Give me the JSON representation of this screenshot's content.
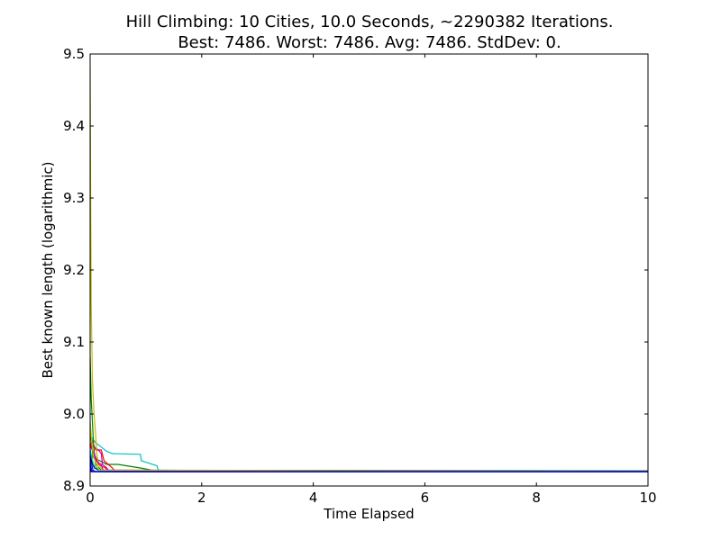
{
  "chart_data": {
    "type": "line",
    "title_line1": "Hill Climbing: 10 Cities, 10.0 Seconds, ~2290382 Iterations.",
    "title_line2": "Best: 7486. Worst: 7486. Avg: 7486. StdDev: 0.",
    "xlabel": "Time Elapsed",
    "ylabel": "Best known length (logarithmic)",
    "xlim": [
      0,
      10
    ],
    "ylim": [
      8.9,
      9.5
    ],
    "x_ticks": [
      0,
      2,
      4,
      6,
      8,
      10
    ],
    "x_tick_labels": [
      "0",
      "2",
      "4",
      "6",
      "8",
      "10"
    ],
    "y_ticks": [
      8.9,
      9.0,
      9.1,
      9.2,
      9.3,
      9.4,
      9.5
    ],
    "y_tick_labels": [
      "8.9",
      "9.0",
      "9.1",
      "9.2",
      "9.3",
      "9.4",
      "9.5"
    ],
    "grid": false,
    "legend": "none",
    "series": [
      {
        "color": "#0000ff",
        "points": [
          [
            0,
            8.95
          ],
          [
            0.03,
            8.93
          ],
          [
            0.05,
            8.922
          ],
          [
            0.1,
            8.92
          ],
          [
            10,
            8.92
          ]
        ]
      },
      {
        "color": "#008000",
        "points": [
          [
            0,
            8.98
          ],
          [
            0.05,
            8.94
          ],
          [
            0.3,
            8.93
          ],
          [
            0.5,
            8.93
          ],
          [
            0.9,
            8.925
          ],
          [
            1.1,
            8.922
          ],
          [
            1.5,
            8.92
          ],
          [
            10,
            8.92
          ]
        ]
      },
      {
        "color": "#ff0000",
        "points": [
          [
            0,
            8.97
          ],
          [
            0.1,
            8.95
          ],
          [
            0.2,
            8.95
          ],
          [
            0.25,
            8.935
          ],
          [
            0.4,
            8.925
          ],
          [
            0.45,
            8.92
          ],
          [
            10,
            8.92
          ]
        ]
      },
      {
        "color": "#00bfbf",
        "points": [
          [
            0,
            8.97
          ],
          [
            0.1,
            8.96
          ],
          [
            0.3,
            8.948
          ],
          [
            0.4,
            8.945
          ],
          [
            0.9,
            8.944
          ],
          [
            0.92,
            8.935
          ],
          [
            1.0,
            8.933
          ],
          [
            1.2,
            8.928
          ],
          [
            1.22,
            8.922
          ],
          [
            2.5,
            8.921
          ],
          [
            2.6,
            8.92
          ],
          [
            10,
            8.92
          ]
        ]
      },
      {
        "color": "#bf00bf",
        "points": [
          [
            0,
            8.96
          ],
          [
            0.05,
            8.955
          ],
          [
            0.15,
            8.95
          ],
          [
            0.2,
            8.945
          ],
          [
            0.22,
            8.93
          ],
          [
            0.3,
            8.925
          ],
          [
            0.35,
            8.92
          ],
          [
            10,
            8.92
          ]
        ]
      },
      {
        "color": "#bfbf00",
        "points": [
          [
            0,
            9.48
          ],
          [
            0.01,
            9.3
          ],
          [
            0.02,
            9.15
          ],
          [
            0.04,
            9.05
          ],
          [
            0.07,
            9.0
          ],
          [
            0.1,
            8.97
          ],
          [
            0.12,
            8.945
          ],
          [
            0.15,
            8.93
          ],
          [
            0.2,
            8.925
          ],
          [
            0.25,
            8.922
          ],
          [
            10,
            8.921
          ]
        ]
      },
      {
        "color": "#000000",
        "points": [
          [
            0,
            8.94
          ],
          [
            0.02,
            8.935
          ],
          [
            0.05,
            8.93
          ],
          [
            0.08,
            8.925
          ],
          [
            0.15,
            8.922
          ],
          [
            0.2,
            8.92
          ],
          [
            10,
            8.92
          ]
        ]
      },
      {
        "color": "#0000ff",
        "points": [
          [
            0,
            8.93
          ],
          [
            0.02,
            8.925
          ],
          [
            0.03,
            8.92
          ],
          [
            10,
            8.92
          ]
        ]
      },
      {
        "color": "#008000",
        "points": [
          [
            0,
            9.08
          ],
          [
            0.02,
            9.02
          ],
          [
            0.04,
            8.99
          ],
          [
            0.06,
            8.96
          ],
          [
            0.08,
            8.94
          ],
          [
            0.1,
            8.93
          ],
          [
            0.2,
            8.922
          ],
          [
            10,
            8.921
          ]
        ]
      },
      {
        "color": "#ff0000",
        "points": [
          [
            0,
            8.96
          ],
          [
            0.04,
            8.95
          ],
          [
            0.1,
            8.94
          ],
          [
            0.15,
            8.93
          ],
          [
            0.28,
            8.925
          ],
          [
            0.3,
            8.92
          ],
          [
            10,
            8.92
          ]
        ]
      },
      {
        "color": "#00bfbf",
        "points": [
          [
            0,
            8.95
          ],
          [
            0.03,
            8.94
          ],
          [
            0.06,
            8.93
          ],
          [
            0.12,
            8.925
          ],
          [
            0.18,
            8.92
          ],
          [
            10,
            8.92
          ]
        ]
      },
      {
        "color": "#bf00bf",
        "points": [
          [
            0,
            8.955
          ],
          [
            0.08,
            8.945
          ],
          [
            0.1,
            8.935
          ],
          [
            0.2,
            8.93
          ],
          [
            0.23,
            8.922
          ],
          [
            10,
            8.92
          ]
        ]
      },
      {
        "color": "#bfbf00",
        "points": [
          [
            0,
            8.99
          ],
          [
            0.03,
            8.96
          ],
          [
            0.06,
            8.94
          ],
          [
            0.12,
            8.93
          ],
          [
            0.16,
            8.922
          ],
          [
            10,
            8.92
          ]
        ]
      },
      {
        "color": "#000000",
        "points": [
          [
            0,
            8.925
          ],
          [
            0.01,
            8.922
          ],
          [
            0.02,
            8.92
          ],
          [
            10,
            8.92
          ]
        ]
      },
      {
        "color": "#0000ff",
        "points": [
          [
            0,
            8.94
          ],
          [
            0.01,
            8.93
          ],
          [
            0.02,
            8.922
          ],
          [
            0.05,
            8.92
          ],
          [
            10,
            8.92
          ]
        ]
      }
    ]
  }
}
